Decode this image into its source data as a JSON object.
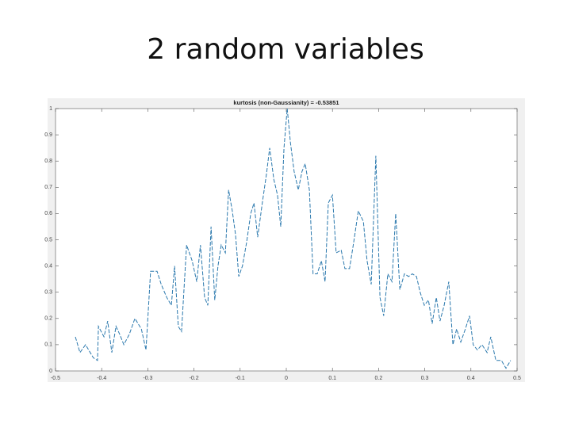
{
  "slide_title": "2 random variables",
  "chart_data": {
    "type": "line",
    "title": "kurtosis (non-Gaussianity) = -0.53851",
    "xlim": [
      -0.5,
      0.5
    ],
    "xticks": [
      -0.5,
      -0.4,
      -0.3,
      -0.2,
      -0.1,
      0,
      0.1,
      0.2,
      0.3,
      0.4,
      0.5
    ],
    "ylim": [
      0,
      1
    ],
    "yticks": [
      0,
      0.1,
      0.2,
      0.3,
      0.4,
      0.5,
      0.6,
      0.7,
      0.8,
      0.9,
      1
    ],
    "series": [
      {
        "color": "#2a78ad",
        "dashed": true,
        "x": [
          -0.457,
          -0.447,
          -0.435,
          -0.418,
          -0.409,
          -0.407,
          -0.395,
          -0.387,
          -0.378,
          -0.369,
          -0.361,
          -0.352,
          -0.34,
          -0.328,
          -0.314,
          -0.304,
          -0.294,
          -0.28,
          -0.271,
          -0.259,
          -0.249,
          -0.242,
          -0.234,
          -0.227,
          -0.216,
          -0.204,
          -0.194,
          -0.186,
          -0.177,
          -0.17,
          -0.163,
          -0.155,
          -0.148,
          -0.141,
          -0.132,
          -0.125,
          -0.117,
          -0.11,
          -0.103,
          -0.095,
          -0.086,
          -0.077,
          -0.07,
          -0.062,
          -0.052,
          -0.043,
          -0.036,
          -0.027,
          -0.019,
          -0.012,
          -0.005,
          0.002,
          0.009,
          0.017,
          0.026,
          0.034,
          0.041,
          0.05,
          0.058,
          0.067,
          0.076,
          0.084,
          0.091,
          0.1,
          0.108,
          0.119,
          0.127,
          0.137,
          0.146,
          0.156,
          0.167,
          0.175,
          0.184,
          0.194,
          0.203,
          0.211,
          0.22,
          0.229,
          0.237,
          0.246,
          0.256,
          0.265,
          0.273,
          0.282,
          0.29,
          0.299,
          0.308,
          0.316,
          0.325,
          0.333,
          0.342,
          0.352,
          0.361,
          0.369,
          0.378,
          0.388,
          0.397,
          0.405,
          0.414,
          0.424,
          0.435,
          0.443,
          0.454,
          0.466,
          0.476,
          0.486
        ],
        "values": [
          0.13,
          0.07,
          0.1,
          0.05,
          0.04,
          0.17,
          0.13,
          0.19,
          0.07,
          0.17,
          0.14,
          0.1,
          0.14,
          0.2,
          0.16,
          0.08,
          0.38,
          0.38,
          0.33,
          0.28,
          0.25,
          0.4,
          0.17,
          0.15,
          0.48,
          0.42,
          0.34,
          0.48,
          0.28,
          0.25,
          0.55,
          0.27,
          0.4,
          0.48,
          0.45,
          0.69,
          0.61,
          0.52,
          0.36,
          0.4,
          0.49,
          0.6,
          0.64,
          0.51,
          0.64,
          0.75,
          0.85,
          0.73,
          0.67,
          0.55,
          0.85,
          1.0,
          0.87,
          0.76,
          0.69,
          0.76,
          0.79,
          0.69,
          0.37,
          0.37,
          0.42,
          0.34,
          0.64,
          0.67,
          0.45,
          0.46,
          0.39,
          0.39,
          0.49,
          0.61,
          0.57,
          0.42,
          0.33,
          0.82,
          0.28,
          0.21,
          0.37,
          0.34,
          0.6,
          0.31,
          0.37,
          0.36,
          0.37,
          0.36,
          0.3,
          0.25,
          0.27,
          0.18,
          0.28,
          0.19,
          0.25,
          0.34,
          0.1,
          0.16,
          0.11,
          0.16,
          0.21,
          0.1,
          0.08,
          0.1,
          0.07,
          0.13,
          0.04,
          0.04,
          0.01,
          0.04
        ]
      }
    ]
  }
}
